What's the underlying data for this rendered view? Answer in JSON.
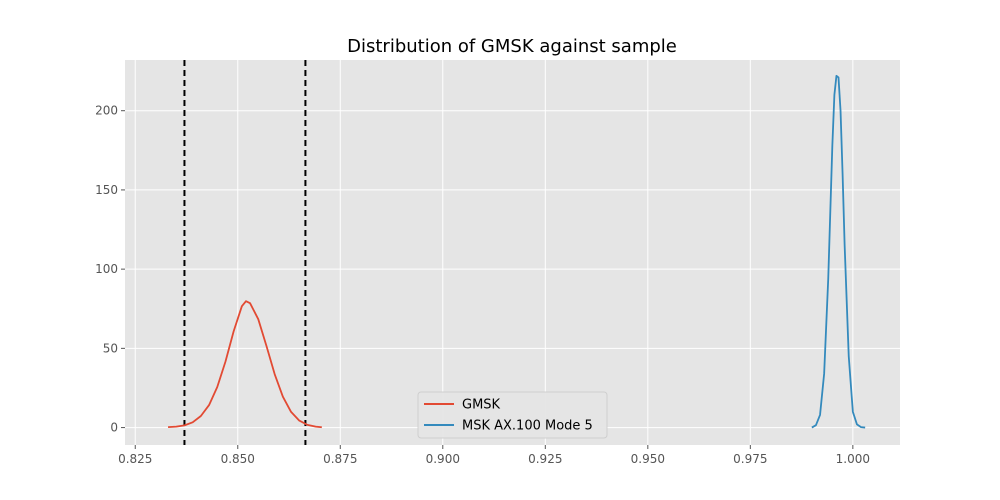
{
  "chart_data": {
    "type": "line",
    "title": "Distribution of GMSK against sample",
    "xlabel": "",
    "ylabel": "",
    "xlim": [
      0.8225,
      1.0115
    ],
    "ylim": [
      -11,
      232
    ],
    "x_ticks": [
      0.825,
      0.85,
      0.875,
      0.9,
      0.925,
      0.95,
      0.975,
      1.0
    ],
    "x_tick_labels": [
      "0.825",
      "0.850",
      "0.875",
      "0.900",
      "0.925",
      "0.950",
      "0.975",
      "1.000"
    ],
    "y_ticks": [
      0,
      50,
      100,
      150,
      200
    ],
    "y_tick_labels": [
      "0",
      "50",
      "100",
      "150",
      "200"
    ],
    "grid": true,
    "legend_placement": "lower-center",
    "series": [
      {
        "name": "GMSK",
        "color": "#E24A33",
        "x": [
          0.833,
          0.835,
          0.837,
          0.839,
          0.841,
          0.843,
          0.845,
          0.847,
          0.849,
          0.851,
          0.852,
          0.853,
          0.855,
          0.857,
          0.859,
          0.861,
          0.863,
          0.865,
          0.867,
          0.869,
          0.8705
        ],
        "y": [
          0.3,
          0.6,
          1.4,
          3.3,
          7.3,
          14.2,
          25.6,
          41.6,
          60.8,
          76.6,
          79.8,
          78.5,
          68.4,
          51.5,
          33.7,
          19.5,
          9.9,
          4.4,
          1.7,
          0.6,
          0.2
        ]
      },
      {
        "name": "MSK AX.100 Mode 5",
        "color": "#348ABD",
        "x": [
          0.99,
          0.991,
          0.992,
          0.993,
          0.994,
          0.995,
          0.9955,
          0.996,
          0.9965,
          0.997,
          0.9975,
          0.998,
          0.999,
          1.0,
          1.001,
          1.002,
          1.003
        ],
        "y": [
          0.0,
          1.5,
          8.0,
          34.0,
          94.0,
          178.0,
          210.0,
          222.0,
          221.0,
          200.0,
          160.0,
          115.0,
          45.0,
          10.0,
          2.0,
          0.3,
          0.0
        ]
      }
    ],
    "vlines": [
      0.837,
      0.8665
    ]
  }
}
